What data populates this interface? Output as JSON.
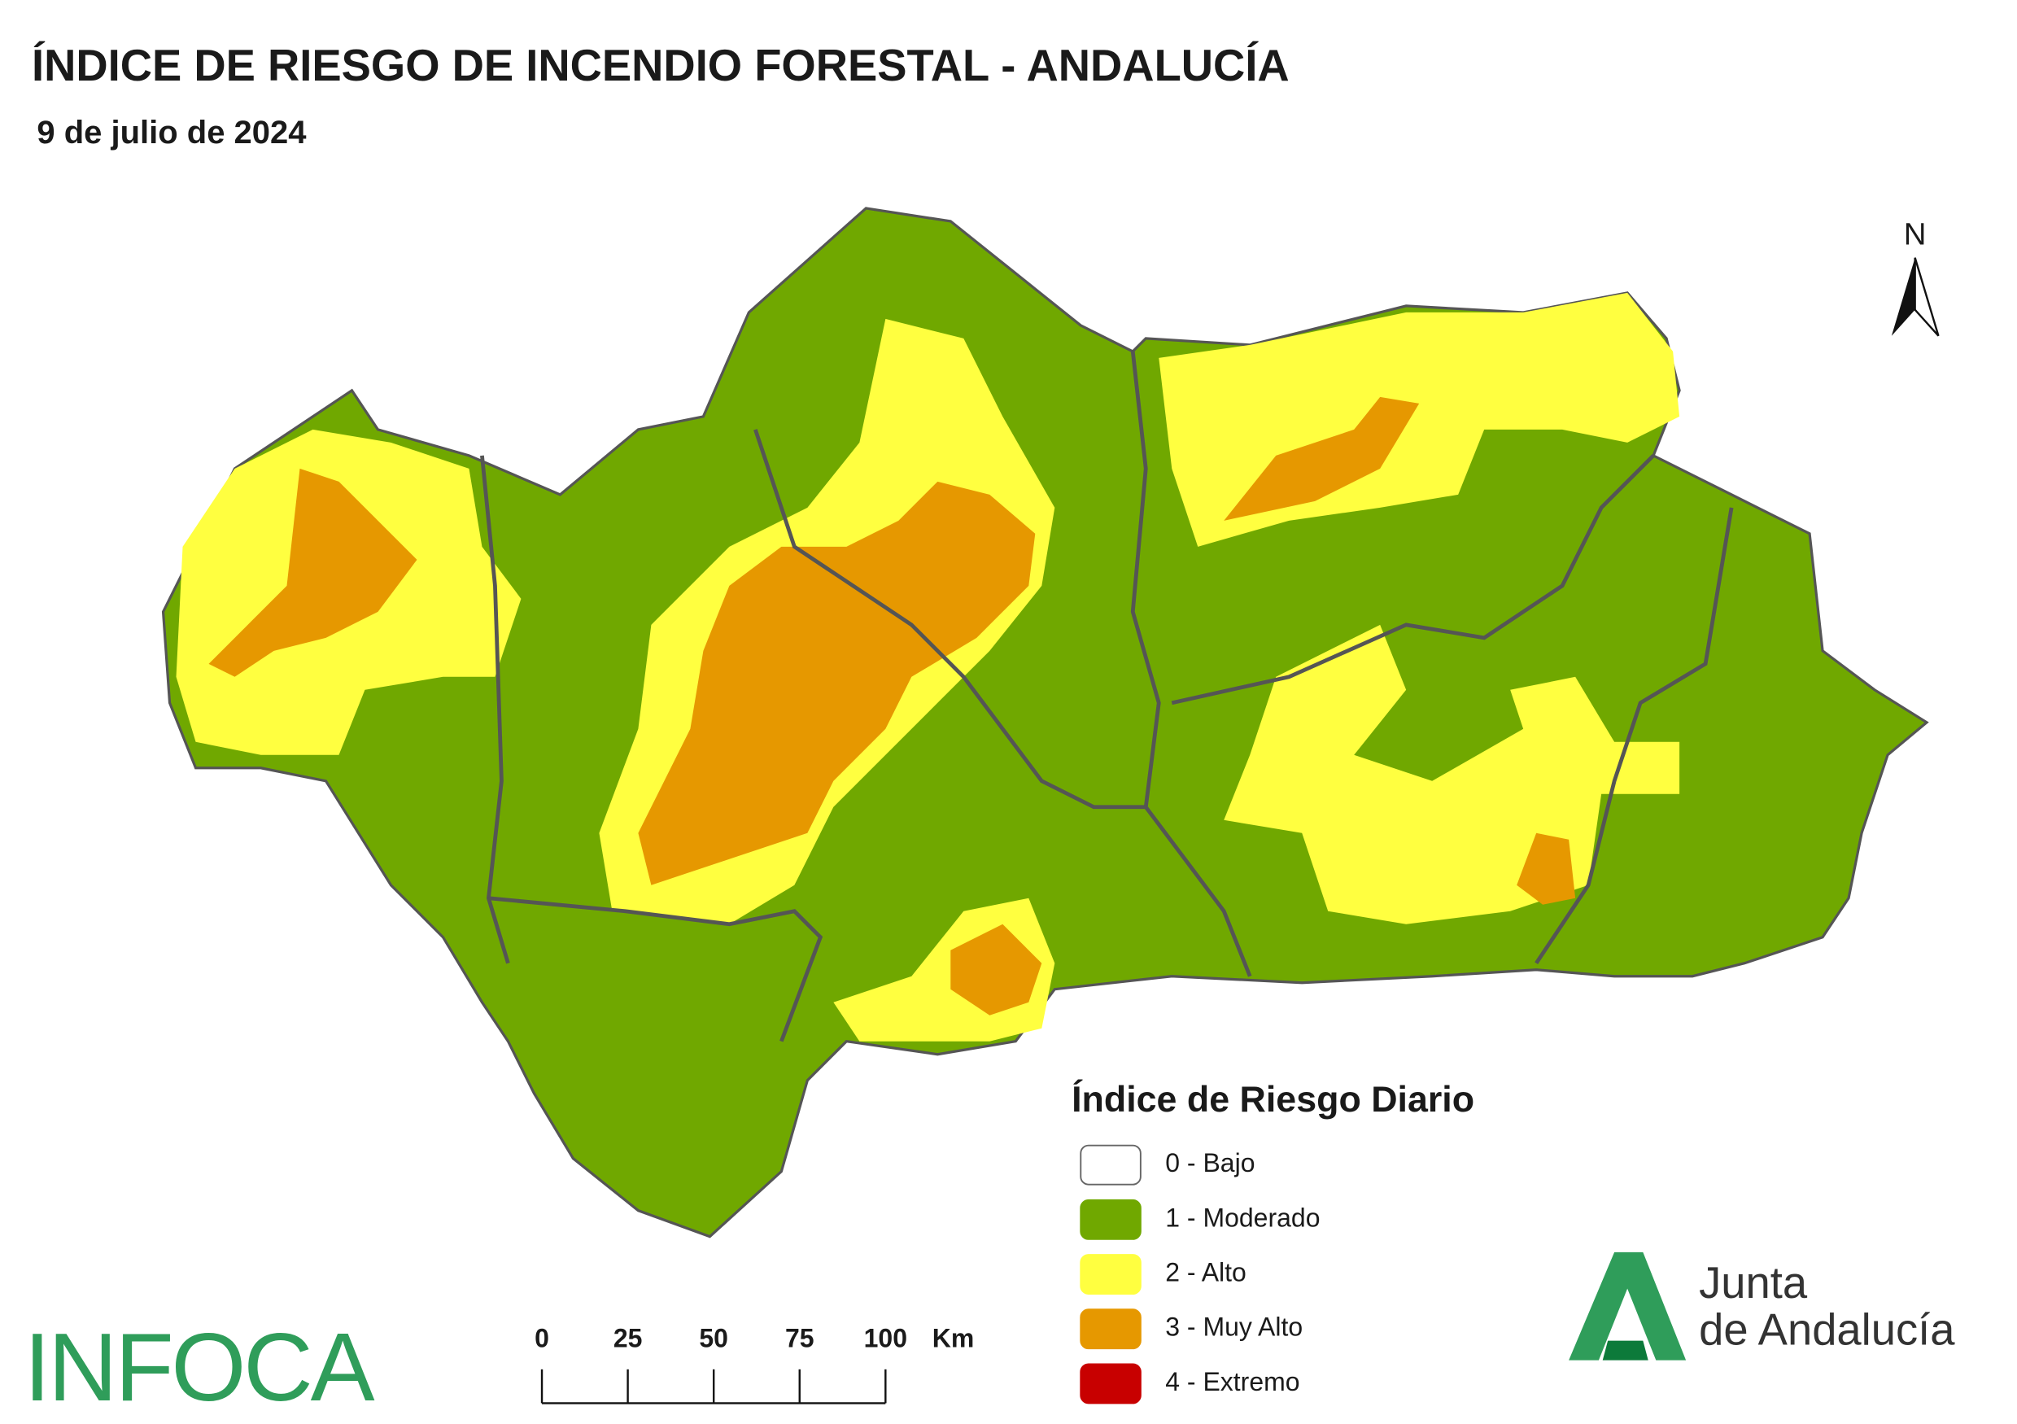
{
  "header": {
    "title": "ÍNDICE DE RIESGO DE INCENDIO FORESTAL - ANDALUCÍA",
    "subtitle": "9 de julio de 2024"
  },
  "north_arrow": {
    "label": "N"
  },
  "legend": {
    "title": "Índice de Riesgo Diario",
    "items": [
      {
        "label": "0 - Bajo",
        "color": "#ffffff"
      },
      {
        "label": "1 - Moderado",
        "color": "#70a800"
      },
      {
        "label": "2 - Alto",
        "color": "#ffff40"
      },
      {
        "label": "3 - Muy Alto",
        "color": "#e69800"
      },
      {
        "label": "4 - Extremo",
        "color": "#c80000"
      }
    ]
  },
  "scale_bar": {
    "ticks": [
      0,
      25,
      50,
      75,
      100
    ],
    "unit": "Km"
  },
  "logos": {
    "infoca": "INFOCA",
    "junta_line1": "Junta",
    "junta_line2": "de Andalucía"
  }
}
